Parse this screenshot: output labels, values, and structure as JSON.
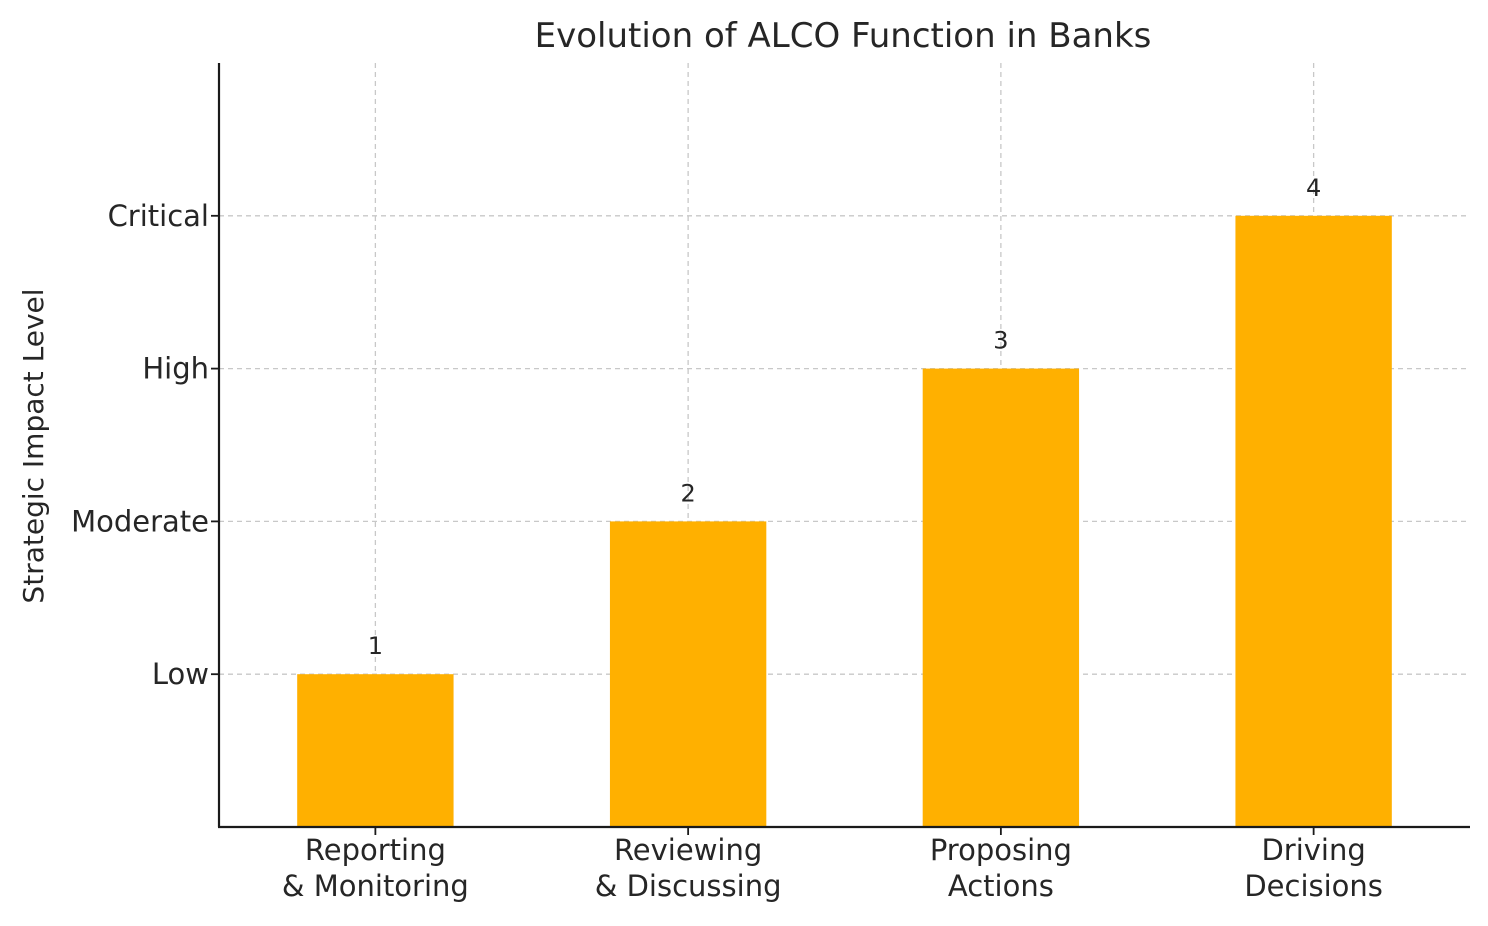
{
  "chart_data": {
    "type": "bar",
    "title": "Evolution of ALCO Function in Banks",
    "xlabel": "",
    "ylabel": "Strategic Impact Level",
    "categories": [
      [
        "Reporting",
        "& Monitoring"
      ],
      [
        "Reviewing",
        "& Discussing"
      ],
      [
        "Proposing",
        "Actions"
      ],
      [
        "Driving",
        "Decisions"
      ]
    ],
    "values": [
      1,
      2,
      3,
      4
    ],
    "data_labels": [
      "1",
      "2",
      "3",
      "4"
    ],
    "yticks": [
      1,
      2,
      3,
      4
    ],
    "ytick_labels": [
      "Low",
      "Moderate",
      "High",
      "Critical"
    ],
    "ylim": [
      0,
      5
    ],
    "grid": true,
    "bar_color": "#FFB000"
  }
}
